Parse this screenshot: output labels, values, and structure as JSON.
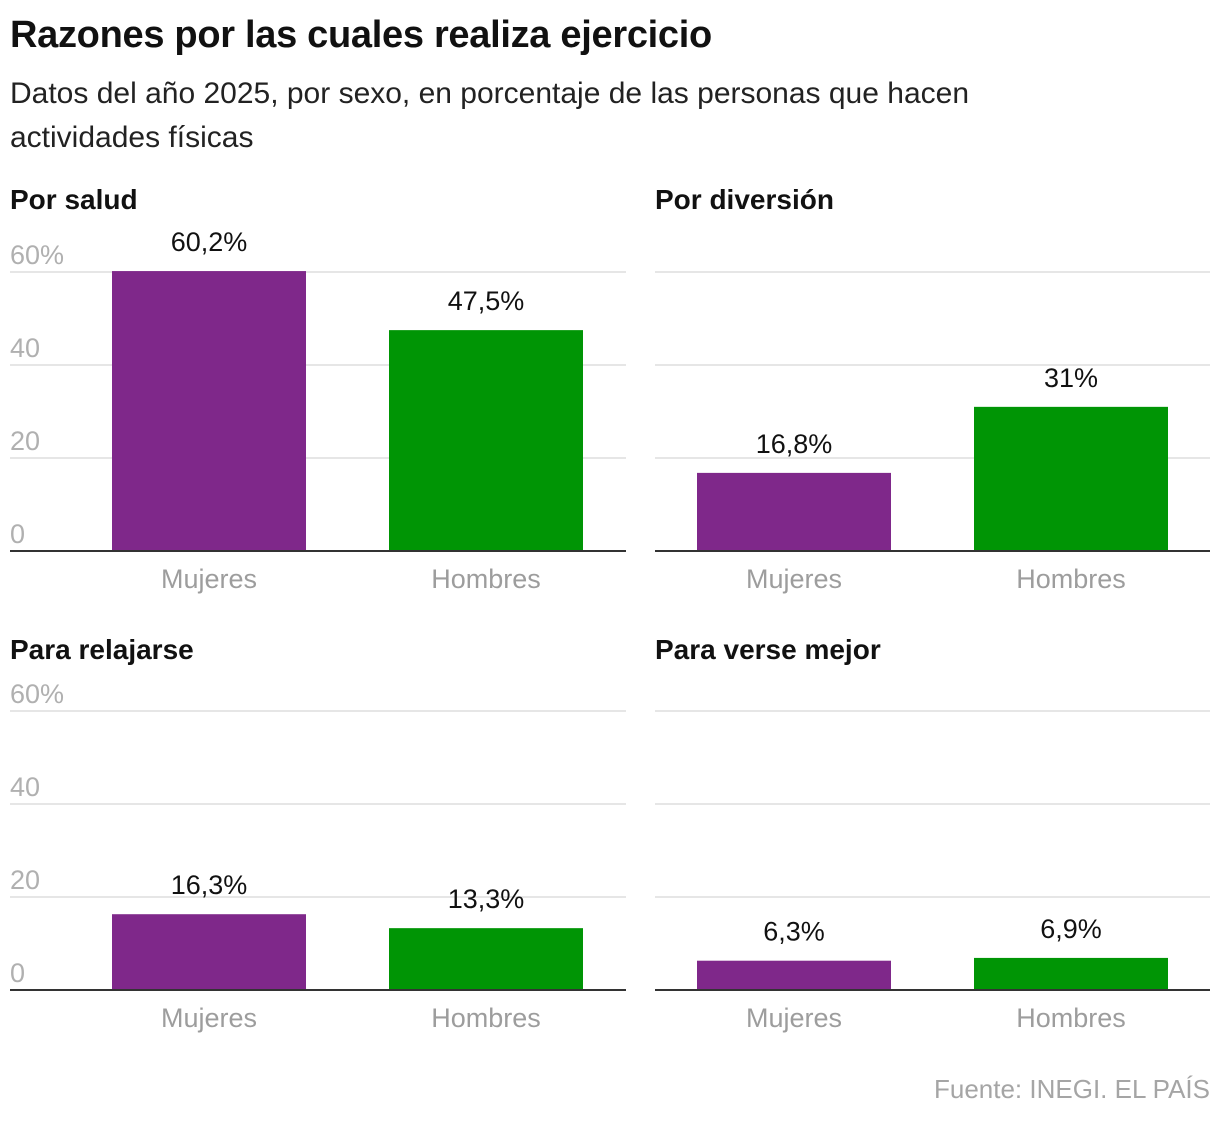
{
  "header": {
    "title": "Razones por las cuales realiza ejercicio",
    "subtitle": "Datos del año 2025, por sexo, en porcentaje de las personas que hacen actividades físicas"
  },
  "source": "Fuente: INEGI. EL PAÍS",
  "colors": {
    "mujeres": "#7f288a",
    "hombres": "#009505",
    "grid": "#dddddd",
    "axis": "#333333"
  },
  "chart_data": [
    {
      "type": "bar",
      "title": "Por salud",
      "categories": [
        "Mujeres",
        "Hombres"
      ],
      "values": [
        60.2,
        47.5
      ],
      "value_labels": [
        "60,2%",
        "47,5%"
      ],
      "y_ticks": [
        0,
        20,
        40,
        60
      ],
      "y_tick_labels": [
        "0",
        "20",
        "40",
        "60%"
      ],
      "ylim": [
        0,
        60
      ],
      "grid": true
    },
    {
      "type": "bar",
      "title": "Por diversión",
      "categories": [
        "Mujeres",
        "Hombres"
      ],
      "values": [
        16.8,
        31
      ],
      "value_labels": [
        "16,8%",
        "31%"
      ],
      "y_ticks": [
        0,
        20,
        40,
        60
      ],
      "y_tick_labels": [],
      "ylim": [
        0,
        60
      ],
      "grid": true
    },
    {
      "type": "bar",
      "title": "Para relajarse",
      "categories": [
        "Mujeres",
        "Hombres"
      ],
      "values": [
        16.3,
        13.3
      ],
      "value_labels": [
        "16,3%",
        "13,3%"
      ],
      "y_ticks": [
        0,
        20,
        40,
        60
      ],
      "y_tick_labels": [
        "0",
        "20",
        "40",
        "60%"
      ],
      "ylim": [
        0,
        60
      ],
      "grid": true
    },
    {
      "type": "bar",
      "title": "Para verse mejor",
      "categories": [
        "Mujeres",
        "Hombres"
      ],
      "values": [
        6.3,
        6.9
      ],
      "value_labels": [
        "6,3%",
        "6,9%"
      ],
      "y_ticks": [
        0,
        20,
        40,
        60
      ],
      "y_tick_labels": [],
      "ylim": [
        0,
        60
      ],
      "grid": true
    }
  ]
}
